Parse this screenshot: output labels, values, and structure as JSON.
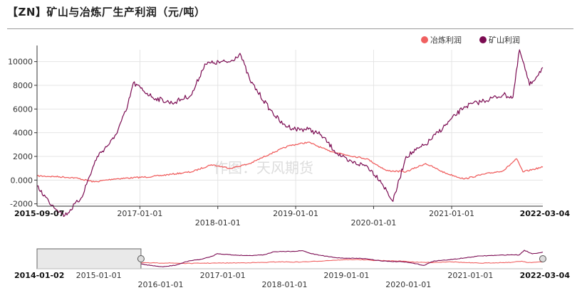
{
  "title": "【ZN】矿山与冶炼厂生产利润（元/吨）",
  "watermark": "作图：天风期货",
  "colors": {
    "smelter": "#f06060",
    "mine": "#7b0b52",
    "grid": "#e4e4e4",
    "axis": "#333333",
    "navigator_mask": "#bfbfbf"
  },
  "chart_data": {
    "type": "line",
    "title": "【ZN】矿山与冶炼厂生产利润（元/吨）",
    "legend_position": "top-right",
    "grid": true,
    "ylim": [
      -2200,
      11000
    ],
    "y_ticks": [
      -2000,
      0,
      2000,
      4000,
      6000,
      8000,
      10000
    ],
    "y_tick_labels": [
      "-2000",
      "0.000",
      "2000",
      "4000",
      "6000",
      "8000",
      "10000"
    ],
    "xlim": [
      "2015-09-07",
      "2022-03-04"
    ],
    "x_range_labels": [
      "2015-09-07",
      "2022-03-04"
    ],
    "x_ticks_upper": [
      "2017-01-01",
      "2019-01-01",
      "2021-01-01"
    ],
    "x_ticks_lower": [
      "2018-01-01",
      "2020-01-01"
    ],
    "series": [
      {
        "name": "冶炼利润",
        "color": "#f06060",
        "x": [
          "2015-09-07",
          "2015-12-01",
          "2016-03-01",
          "2016-06-01",
          "2016-09-01",
          "2016-12-01",
          "2017-03-01",
          "2017-06-01",
          "2017-09-01",
          "2017-12-01",
          "2018-03-01",
          "2018-06-01",
          "2018-09-01",
          "2018-12-01",
          "2019-03-01",
          "2019-06-01",
          "2019-09-01",
          "2019-12-01",
          "2020-03-01",
          "2020-06-01",
          "2020-09-01",
          "2020-12-01",
          "2021-03-01",
          "2021-06-01",
          "2021-09-01",
          "2021-11-01",
          "2021-12-01",
          "2022-03-04"
        ],
        "y": [
          350,
          300,
          200,
          -150,
          100,
          200,
          300,
          500,
          700,
          1300,
          1000,
          1400,
          2200,
          2900,
          3200,
          2500,
          2100,
          1800,
          800,
          700,
          1400,
          600,
          100,
          500,
          800,
          1800,
          700,
          1100
        ]
      },
      {
        "name": "矿山利润",
        "color": "#7b0b52",
        "x": [
          "2015-09-07",
          "2015-11-01",
          "2016-01-15",
          "2016-04-01",
          "2016-06-15",
          "2016-09-01",
          "2016-11-01",
          "2016-12-01",
          "2017-03-01",
          "2017-06-01",
          "2017-09-01",
          "2017-11-01",
          "2017-12-15",
          "2018-03-01",
          "2018-04-15",
          "2018-06-01",
          "2018-09-01",
          "2018-11-01",
          "2019-01-01",
          "2019-03-01",
          "2019-05-01",
          "2019-07-01",
          "2019-09-01",
          "2019-12-01",
          "2020-02-01",
          "2020-04-01",
          "2020-06-01",
          "2020-09-01",
          "2020-12-01",
          "2021-03-01",
          "2021-06-01",
          "2021-09-01",
          "2021-10-15",
          "2021-11-15",
          "2022-01-01",
          "2022-03-04"
        ],
        "y": [
          -500,
          -1800,
          -3000,
          -1500,
          2000,
          3500,
          6000,
          8200,
          7000,
          6500,
          7200,
          9800,
          9900,
          10000,
          10700,
          8400,
          6000,
          4700,
          4300,
          4300,
          3800,
          2500,
          1600,
          1200,
          0,
          -1800,
          2000,
          3000,
          4600,
          6200,
          6700,
          7200,
          7000,
          11000,
          8000,
          9500
        ]
      }
    ],
    "navigator": {
      "range_labels": [
        "2014-01-02",
        "2022-03-04"
      ],
      "ticks_upper": [
        "2015-01-01",
        "2017-01-01",
        "2019-01-01",
        "2021-01-01"
      ],
      "ticks_lower": [
        "2016-01-01",
        "2018-01-01",
        "2020-01-01"
      ],
      "selection": [
        "2014-01-02",
        "2015-09-07"
      ]
    }
  }
}
